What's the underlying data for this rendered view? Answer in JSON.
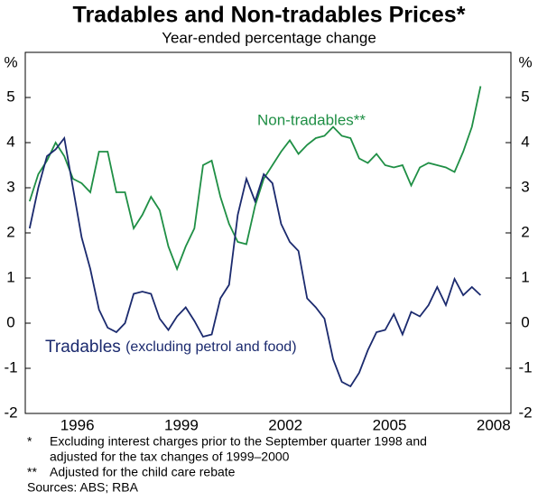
{
  "chart_data": {
    "type": "line",
    "title": "Tradables and Non-tradables Prices*",
    "subtitle": "Year-ended percentage change",
    "y_unit": "%",
    "xlim": [
      1995,
      2009
    ],
    "xticks": [
      {
        "value": 1996.5,
        "label": "1996"
      },
      {
        "value": 1999.5,
        "label": "1999"
      },
      {
        "value": 2002.5,
        "label": "2002"
      },
      {
        "value": 2005.5,
        "label": "2005"
      },
      {
        "value": 2008.5,
        "label": "2008"
      }
    ],
    "ylim": [
      -2,
      6
    ],
    "yticks": [
      -2,
      -1,
      0,
      1,
      2,
      3,
      4,
      5
    ],
    "x": [
      1995.125,
      1995.375,
      1995.625,
      1995.875,
      1996.125,
      1996.375,
      1996.625,
      1996.875,
      1997.125,
      1997.375,
      1997.625,
      1997.875,
      1998.125,
      1998.375,
      1998.625,
      1998.875,
      1999.125,
      1999.375,
      1999.625,
      1999.875,
      2000.125,
      2000.375,
      2000.625,
      2000.875,
      2001.125,
      2001.375,
      2001.625,
      2001.875,
      2002.125,
      2002.375,
      2002.625,
      2002.875,
      2003.125,
      2003.375,
      2003.625,
      2003.875,
      2004.125,
      2004.375,
      2004.625,
      2004.875,
      2005.125,
      2005.375,
      2005.625,
      2005.875,
      2006.125,
      2006.375,
      2006.625,
      2006.875,
      2007.125,
      2007.375,
      2007.625,
      2007.875,
      2008.125
    ],
    "series": [
      {
        "name": "Non-tradables**",
        "color": "#1f8f45",
        "values": [
          2.7,
          3.3,
          3.6,
          4.0,
          3.7,
          3.2,
          3.1,
          2.9,
          3.8,
          3.8,
          2.9,
          2.9,
          2.1,
          2.4,
          2.8,
          2.5,
          1.7,
          1.2,
          1.7,
          2.1,
          3.5,
          3.6,
          2.8,
          2.2,
          1.8,
          1.75,
          2.6,
          3.2,
          3.5,
          3.8,
          4.05,
          3.75,
          3.95,
          4.1,
          4.15,
          4.35,
          4.15,
          4.1,
          3.65,
          3.55,
          3.75,
          3.5,
          3.45,
          3.5,
          3.05,
          3.45,
          3.55,
          3.5,
          3.45,
          3.35,
          3.8,
          4.35,
          5.25
        ]
      },
      {
        "name": "Tradables",
        "note": "(excluding petrol and food)",
        "color": "#1b2a6e",
        "values": [
          2.1,
          3.0,
          3.7,
          3.85,
          4.1,
          3.0,
          1.9,
          1.2,
          0.3,
          -0.1,
          -0.2,
          0.0,
          0.65,
          0.7,
          0.65,
          0.1,
          -0.15,
          0.15,
          0.35,
          0.05,
          -0.3,
          -0.25,
          0.55,
          0.85,
          2.4,
          3.2,
          2.7,
          3.3,
          3.1,
          2.2,
          1.8,
          1.6,
          0.55,
          0.35,
          0.1,
          -0.8,
          -1.3,
          -1.4,
          -1.1,
          -0.6,
          -0.2,
          -0.15,
          0.2,
          -0.25,
          0.25,
          0.15,
          0.4,
          0.8,
          0.4,
          0.98,
          0.62,
          0.8,
          0.62
        ]
      }
    ],
    "notes": [
      {
        "marker": "*",
        "lines": [
          "Excluding interest charges prior to the September quarter 1998 and",
          "adjusted for the tax changes of 1999–2000"
        ]
      },
      {
        "marker": "**",
        "lines": [
          "Adjusted for the child care rebate"
        ]
      }
    ],
    "source": "Sources: ABS; RBA"
  }
}
